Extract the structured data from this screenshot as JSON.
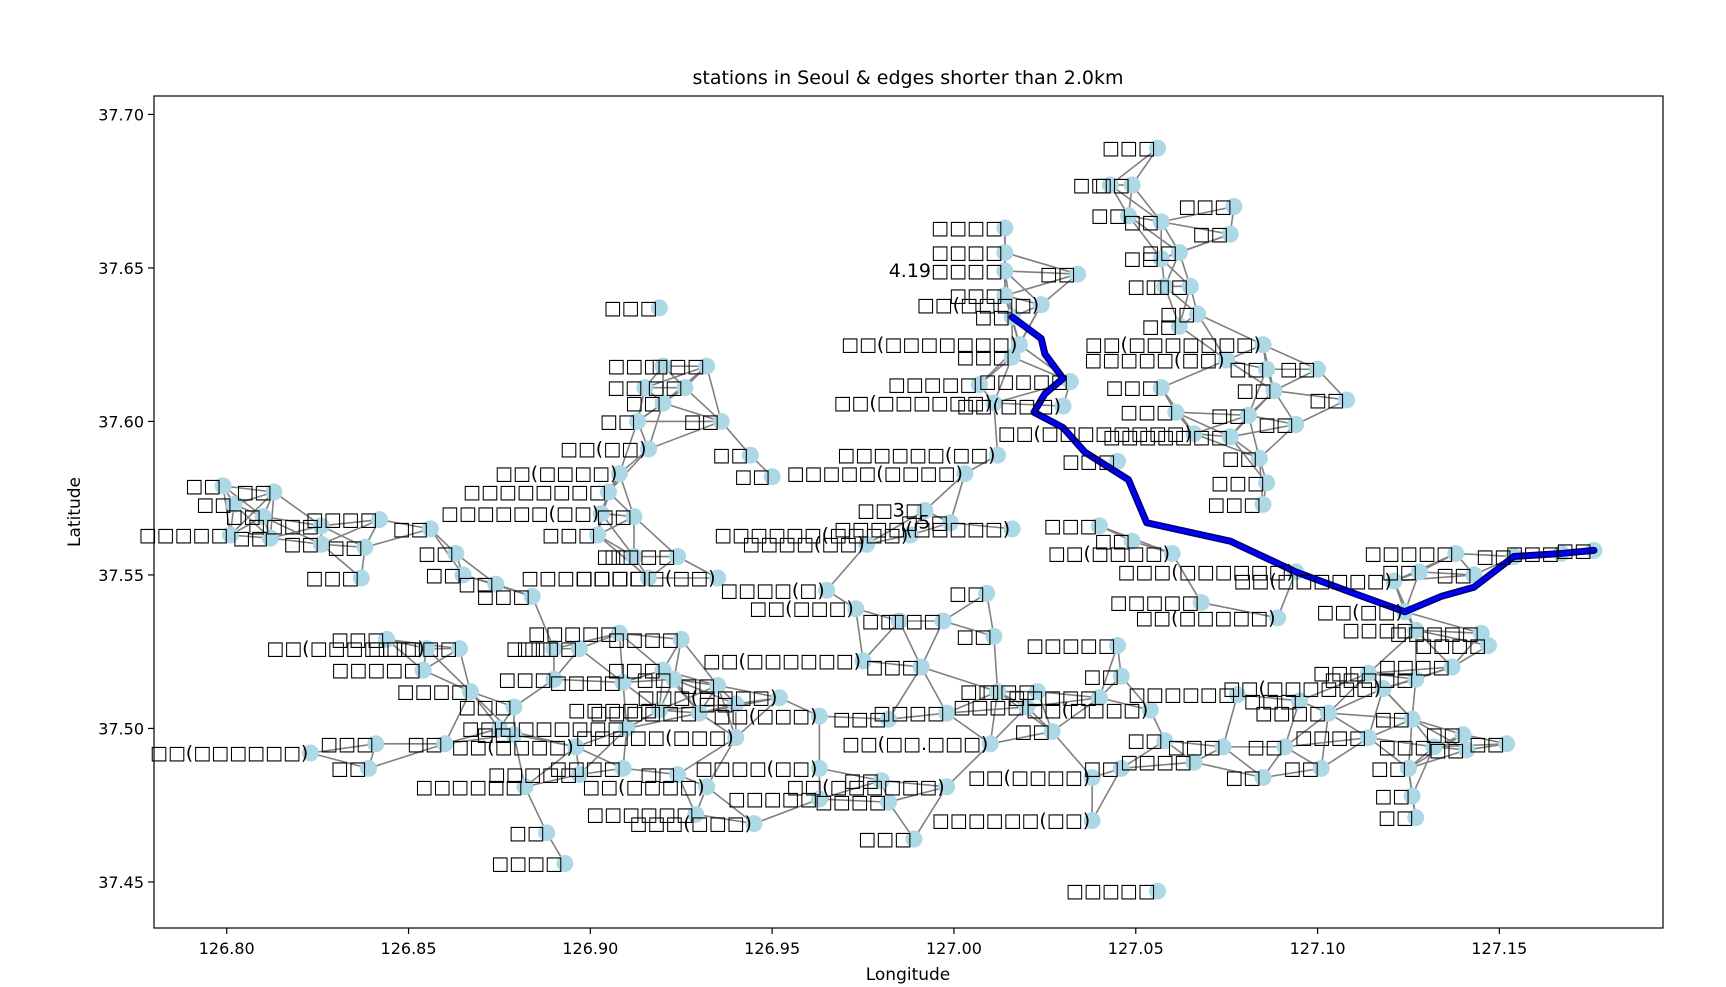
{
  "chart_data": {
    "type": "scatter",
    "title": "stations in Seoul & edges shorter than 2.0km",
    "xlabel": "Longitude",
    "ylabel": "Latitude",
    "xlim": [
      126.78,
      127.195
    ],
    "ylim": [
      37.435,
      37.706
    ],
    "xticks": [
      "126.80",
      "126.85",
      "126.90",
      "126.95",
      "127.00",
      "127.05",
      "127.10",
      "127.15"
    ],
    "yticks": [
      "37.45",
      "37.50",
      "37.55",
      "37.60",
      "37.65",
      "37.70"
    ],
    "grid": false,
    "legend": "none",
    "colors": {
      "node": "#add8e6",
      "edge": "#808080",
      "path": "#0000ff",
      "path_outline": "#000080"
    },
    "nodes": [
      {
        "label": "□□□",
        "x": 127.056,
        "y": 37.689
      },
      {
        "label": "□□",
        "x": 127.049,
        "y": 37.677
      },
      {
        "label": "□□",
        "x": 127.043,
        "y": 37.677
      },
      {
        "label": "□□□",
        "x": 127.077,
        "y": 37.67
      },
      {
        "label": "□□",
        "x": 127.048,
        "y": 37.667
      },
      {
        "label": "□□",
        "x": 127.057,
        "y": 37.665
      },
      {
        "label": "□□",
        "x": 127.076,
        "y": 37.661
      },
      {
        "label": "□□□□",
        "x": 127.014,
        "y": 37.663
      },
      {
        "label": "□□□□",
        "x": 127.014,
        "y": 37.655
      },
      {
        "label": "□□",
        "x": 127.057,
        "y": 37.653
      },
      {
        "label": "□□",
        "x": 127.062,
        "y": 37.655
      },
      {
        "label": "4.19□□□□",
        "x": 127.014,
        "y": 37.649
      },
      {
        "label": "□□",
        "x": 127.034,
        "y": 37.648
      },
      {
        "label": "□□",
        "x": 127.058,
        "y": 37.644
      },
      {
        "label": "□□",
        "x": 127.065,
        "y": 37.644
      },
      {
        "label": "□□□",
        "x": 127.014,
        "y": 37.641
      },
      {
        "label": "□□(□□□□)",
        "x": 127.024,
        "y": 37.638
      },
      {
        "label": "□□",
        "x": 127.016,
        "y": 37.634
      },
      {
        "label": "□□",
        "x": 127.067,
        "y": 37.635
      },
      {
        "label": "□□",
        "x": 127.062,
        "y": 37.631
      },
      {
        "label": "□□□",
        "x": 126.919,
        "y": 37.637
      },
      {
        "label": "□□(□□□□□□□)",
        "x": 127.018,
        "y": 37.625
      },
      {
        "label": "□□(□□□□□□□)",
        "x": 127.085,
        "y": 37.625
      },
      {
        "label": "□□□",
        "x": 127.016,
        "y": 37.621
      },
      {
        "label": "□□□□□(□□)",
        "x": 127.075,
        "y": 37.62
      },
      {
        "label": "□□",
        "x": 127.086,
        "y": 37.617
      },
      {
        "label": "□□□",
        "x": 126.932,
        "y": 37.618
      },
      {
        "label": "□□□",
        "x": 126.92,
        "y": 37.618
      },
      {
        "label": "□□",
        "x": 126.915,
        "y": 37.611
      },
      {
        "label": "□□",
        "x": 126.926,
        "y": 37.611
      },
      {
        "label": "□□",
        "x": 126.92,
        "y": 37.606
      },
      {
        "label": "□□",
        "x": 127.1,
        "y": 37.617
      },
      {
        "label": "□□",
        "x": 127.108,
        "y": 37.607
      },
      {
        "label": "□□□□□",
        "x": 127.007,
        "y": 37.612
      },
      {
        "label": "□□□□□",
        "x": 127.032,
        "y": 37.613
      },
      {
        "label": "□□",
        "x": 127.088,
        "y": 37.61
      },
      {
        "label": "□□□",
        "x": 127.057,
        "y": 37.611
      },
      {
        "label": "□□(□□□□□□)",
        "x": 127.011,
        "y": 37.606
      },
      {
        "label": "□□(□□□)",
        "x": 127.03,
        "y": 37.605
      },
      {
        "label": "□□□",
        "x": 127.061,
        "y": 37.603
      },
      {
        "label": "□□",
        "x": 127.081,
        "y": 37.602
      },
      {
        "label": "□□",
        "x": 127.094,
        "y": 37.599
      },
      {
        "label": "□□",
        "x": 126.936,
        "y": 37.6
      },
      {
        "label": "□□",
        "x": 126.913,
        "y": 37.6
      },
      {
        "label": "□□(□□)",
        "x": 126.916,
        "y": 37.591
      },
      {
        "label": "□□(□□□□□□□□)",
        "x": 127.066,
        "y": 37.596
      },
      {
        "label": "□□□□□□□",
        "x": 127.076,
        "y": 37.595
      },
      {
        "label": "□□",
        "x": 127.084,
        "y": 37.588
      },
      {
        "label": "□□",
        "x": 126.944,
        "y": 37.589
      },
      {
        "label": "□□(□□□□)",
        "x": 126.908,
        "y": 37.583
      },
      {
        "label": "□□□□□□(□□)",
        "x": 127.012,
        "y": 37.589
      },
      {
        "label": "□□□□□(□□□□)",
        "x": 127.003,
        "y": 37.583
      },
      {
        "label": "□□□",
        "x": 127.045,
        "y": 37.587
      },
      {
        "label": "□□",
        "x": 126.95,
        "y": 37.582
      },
      {
        "label": "□□□□□□□□",
        "x": 126.905,
        "y": 37.577
      },
      {
        "label": "□□□□□□(□□)",
        "x": 126.903,
        "y": 37.57
      },
      {
        "label": "□□□",
        "x": 127.086,
        "y": 37.58
      },
      {
        "label": "□□□",
        "x": 127.085,
        "y": 37.573
      },
      {
        "label": "□□",
        "x": 126.799,
        "y": 37.579
      },
      {
        "label": "□□",
        "x": 126.813,
        "y": 37.577
      },
      {
        "label": "□□",
        "x": 126.802,
        "y": 37.573
      },
      {
        "label": "□□",
        "x": 126.81,
        "y": 37.569
      },
      {
        "label": "□□□□",
        "x": 126.842,
        "y": 37.568
      },
      {
        "label": "□□□□",
        "x": 126.826,
        "y": 37.566
      },
      {
        "label": "□□□□□",
        "x": 126.801,
        "y": 37.563
      },
      {
        "label": "□□",
        "x": 126.812,
        "y": 37.562
      },
      {
        "label": "□□",
        "x": 126.826,
        "y": 37.56
      },
      {
        "label": "□□",
        "x": 126.838,
        "y": 37.559
      },
      {
        "label": "□□",
        "x": 126.856,
        "y": 37.565
      },
      {
        "label": "□□",
        "x": 126.863,
        "y": 37.557
      },
      {
        "label": "□□",
        "x": 126.865,
        "y": 37.55
      },
      {
        "label": "□□□",
        "x": 126.837,
        "y": 37.549
      },
      {
        "label": "□□",
        "x": 126.874,
        "y": 37.547
      },
      {
        "label": "□□□",
        "x": 126.884,
        "y": 37.543
      },
      {
        "label": "□□",
        "x": 126.912,
        "y": 37.569
      },
      {
        "label": "□□□",
        "x": 126.902,
        "y": 37.563
      },
      {
        "label": "□□",
        "x": 126.912,
        "y": 37.556
      },
      {
        "label": "□□□□",
        "x": 126.924,
        "y": 37.556
      },
      {
        "label": "□□□□□(□□)",
        "x": 126.935,
        "y": 37.549
      },
      {
        "label": "□□□□□□□",
        "x": 126.916,
        "y": 37.549
      },
      {
        "label": "□□□□(□□)",
        "x": 126.976,
        "y": 37.56
      },
      {
        "label": "□□□□□□(□□□□)",
        "x": 126.988,
        "y": 37.563
      },
      {
        "label": "□□3□",
        "x": 126.992,
        "y": 37.571
      },
      {
        "label": "□5□",
        "x": 126.999,
        "y": 37.567
      },
      {
        "label": "□□□□(□□□□□)",
        "x": 127.016,
        "y": 37.565
      },
      {
        "label": "□□□",
        "x": 127.04,
        "y": 37.566
      },
      {
        "label": "□□",
        "x": 127.049,
        "y": 37.561
      },
      {
        "label": "□□(□□□□)",
        "x": 127.06,
        "y": 37.557
      },
      {
        "label": "□□□(□□□□□□)",
        "x": 127.094,
        "y": 37.551
      },
      {
        "label": "□□(□□□□□□)",
        "x": 127.121,
        "y": 37.548
      },
      {
        "label": "□□(□□)",
        "x": 127.124,
        "y": 37.538
      },
      {
        "label": "□□□□□",
        "x": 127.138,
        "y": 37.557
      },
      {
        "label": "□□",
        "x": 127.128,
        "y": 37.551
      },
      {
        "label": "□□",
        "x": 127.143,
        "y": 37.55
      },
      {
        "label": "□□",
        "x": 127.154,
        "y": 37.556
      },
      {
        "label": "□□□",
        "x": 127.167,
        "y": 37.557
      },
      {
        "label": "□□",
        "x": 127.176,
        "y": 37.558
      },
      {
        "label": "□□□□(□)",
        "x": 126.965,
        "y": 37.545
      },
      {
        "label": "□□(□□□)",
        "x": 126.973,
        "y": 37.539
      },
      {
        "label": "□□□□□",
        "x": 127.068,
        "y": 37.541
      },
      {
        "label": "□□(□□□□□)",
        "x": 127.089,
        "y": 37.536
      },
      {
        "label": "□□□□",
        "x": 127.127,
        "y": 37.532
      },
      {
        "label": "□□□□□",
        "x": 127.145,
        "y": 37.531
      },
      {
        "label": "□□□□",
        "x": 127.147,
        "y": 37.527
      },
      {
        "label": "□□",
        "x": 127.009,
        "y": 37.544
      },
      {
        "label": "□□□",
        "x": 126.997,
        "y": 37.535
      },
      {
        "label": "□□",
        "x": 126.985,
        "y": 37.535
      },
      {
        "label": "□□",
        "x": 127.011,
        "y": 37.53
      },
      {
        "label": "□□□□□",
        "x": 127.045,
        "y": 37.527
      },
      {
        "label": "□□□□",
        "x": 127.137,
        "y": 37.52
      },
      {
        "label": "□□(□□□□□□)",
        "x": 126.975,
        "y": 37.522
      },
      {
        "label": "□□□",
        "x": 126.991,
        "y": 37.52
      },
      {
        "label": "□□□",
        "x": 126.844,
        "y": 37.529
      },
      {
        "label": "□□(□□□□□□)",
        "x": 126.855,
        "y": 37.526
      },
      {
        "label": "□□□□□",
        "x": 126.864,
        "y": 37.526
      },
      {
        "label": "□□□□□",
        "x": 126.854,
        "y": 37.519
      },
      {
        "label": "□□□□",
        "x": 126.867,
        "y": 37.512
      },
      {
        "label": "□□□□",
        "x": 126.897,
        "y": 37.526
      },
      {
        "label": "□□",
        "x": 126.89,
        "y": 37.526
      },
      {
        "label": "□□□",
        "x": 126.89,
        "y": 37.516
      },
      {
        "label": "□□□□□",
        "x": 126.908,
        "y": 37.531
      },
      {
        "label": "□□□□",
        "x": 126.925,
        "y": 37.529
      },
      {
        "label": "□□□",
        "x": 126.92,
        "y": 37.519
      },
      {
        "label": "□□□□",
        "x": 126.909,
        "y": 37.515
      },
      {
        "label": "□□",
        "x": 126.923,
        "y": 37.516
      },
      {
        "label": "□□",
        "x": 126.935,
        "y": 37.514
      },
      {
        "label": "□□□(□□□□)",
        "x": 126.952,
        "y": 37.51
      },
      {
        "label": "□□(□□□)",
        "x": 126.963,
        "y": 37.504
      },
      {
        "label": "□□",
        "x": 126.94,
        "y": 37.508
      },
      {
        "label": "□□□□□",
        "x": 126.919,
        "y": 37.506
      },
      {
        "label": "□□□□□□",
        "x": 126.93,
        "y": 37.505
      },
      {
        "label": "□□□",
        "x": 126.879,
        "y": 37.507
      },
      {
        "label": "□□",
        "x": 126.879,
        "y": 37.498
      },
      {
        "label": "□□",
        "x": 126.86,
        "y": 37.495
      },
      {
        "label": "□□",
        "x": 126.875,
        "y": 37.5
      },
      {
        "label": "□□□",
        "x": 126.841,
        "y": 37.495
      },
      {
        "label": "□□",
        "x": 126.839,
        "y": 37.487
      },
      {
        "label": "□□(□□□□□□)",
        "x": 126.823,
        "y": 37.492
      },
      {
        "label": "□□(□□□□)",
        "x": 126.896,
        "y": 37.494
      },
      {
        "label": "□□□□□□□",
        "x": 126.91,
        "y": 37.5
      },
      {
        "label": "□□□□□(□□□)",
        "x": 126.94,
        "y": 37.497
      },
      {
        "label": "□□□□□",
        "x": 126.897,
        "y": 37.485
      },
      {
        "label": "□□□□",
        "x": 126.909,
        "y": 37.487
      },
      {
        "label": "□□□□□□",
        "x": 126.882,
        "y": 37.481
      },
      {
        "label": "□□(□□□□)",
        "x": 126.932,
        "y": 37.481
      },
      {
        "label": "□□",
        "x": 126.924,
        "y": 37.485
      },
      {
        "label": "□□□□□□",
        "x": 126.929,
        "y": 37.472
      },
      {
        "label": "□□□(□□□)",
        "x": 126.945,
        "y": 37.469
      },
      {
        "label": "□□",
        "x": 126.888,
        "y": 37.466
      },
      {
        "label": "□□□□",
        "x": 126.893,
        "y": 37.456
      },
      {
        "label": "□□□□(□□)",
        "x": 126.963,
        "y": 37.487
      },
      {
        "label": "□□□□□",
        "x": 126.963,
        "y": 37.477
      },
      {
        "label": "□□",
        "x": 126.98,
        "y": 37.483
      },
      {
        "label": "□□□□",
        "x": 126.982,
        "y": 37.476
      },
      {
        "label": "□□□",
        "x": 126.989,
        "y": 37.464
      },
      {
        "label": "□□(□□□□□□)",
        "x": 126.998,
        "y": 37.481
      },
      {
        "label": "□□(□□.□□□)",
        "x": 127.01,
        "y": 37.495
      },
      {
        "label": "□□□",
        "x": 126.982,
        "y": 37.503
      },
      {
        "label": "□□□□",
        "x": 126.998,
        "y": 37.505
      },
      {
        "label": "□□□□",
        "x": 127.02,
        "y": 37.507
      },
      {
        "label": "□□",
        "x": 127.012,
        "y": 37.512
      },
      {
        "label": "□□□",
        "x": 127.023,
        "y": 37.512
      },
      {
        "label": "□□",
        "x": 127.027,
        "y": 37.499
      },
      {
        "label": "□□(□□□□)",
        "x": 127.038,
        "y": 37.484
      },
      {
        "label": "□□□□□□(□□)",
        "x": 127.038,
        "y": 37.47
      },
      {
        "label": "□□□□□",
        "x": 127.056,
        "y": 37.447
      },
      {
        "label": "□□□□□",
        "x": 127.04,
        "y": 37.51
      },
      {
        "label": "□□(□□□□)",
        "x": 127.054,
        "y": 37.506
      },
      {
        "label": "□□",
        "x": 127.046,
        "y": 37.517
      },
      {
        "label": "□□□□□□",
        "x": 127.078,
        "y": 37.511
      },
      {
        "label": "□□",
        "x": 127.046,
        "y": 37.487
      },
      {
        "label": "□□",
        "x": 127.058,
        "y": 37.496
      },
      {
        "label": "□□□□",
        "x": 127.066,
        "y": 37.489
      },
      {
        "label": "□□□",
        "x": 127.074,
        "y": 37.494
      },
      {
        "label": "□□",
        "x": 127.085,
        "y": 37.484
      },
      {
        "label": "□□",
        "x": 127.091,
        "y": 37.494
      },
      {
        "label": "□□□",
        "x": 127.095,
        "y": 37.509
      },
      {
        "label": "□□□□",
        "x": 127.103,
        "y": 37.505
      },
      {
        "label": "□□(□□□□□□)",
        "x": 127.118,
        "y": 37.513
      },
      {
        "label": "□□□",
        "x": 127.114,
        "y": 37.518
      },
      {
        "label": "□□□□□",
        "x": 127.127,
        "y": 37.516
      },
      {
        "label": "□□□□",
        "x": 127.114,
        "y": 37.497
      },
      {
        "label": "□□",
        "x": 127.101,
        "y": 37.487
      },
      {
        "label": "□□",
        "x": 127.126,
        "y": 37.503
      },
      {
        "label": "□□□",
        "x": 127.132,
        "y": 37.494
      },
      {
        "label": "□□",
        "x": 127.14,
        "y": 37.498
      },
      {
        "label": "□□",
        "x": 127.141,
        "y": 37.493
      },
      {
        "label": "□□",
        "x": 127.152,
        "y": 37.495
      },
      {
        "label": "□□",
        "x": 127.125,
        "y": 37.487
      },
      {
        "label": "□□",
        "x": 127.126,
        "y": 37.478
      },
      {
        "label": "□□",
        "x": 127.127,
        "y": 37.471
      }
    ],
    "path": [
      [
        127.016,
        37.634
      ],
      [
        127.024,
        37.627
      ],
      [
        127.025,
        37.622
      ],
      [
        127.03,
        37.614
      ],
      [
        127.025,
        37.609
      ],
      [
        127.022,
        37.603
      ],
      [
        127.03,
        37.598
      ],
      [
        127.036,
        37.59
      ],
      [
        127.048,
        37.581
      ],
      [
        127.053,
        37.567
      ],
      [
        127.076,
        37.561
      ],
      [
        127.094,
        37.551
      ],
      [
        127.11,
        37.544
      ],
      [
        127.124,
        37.538
      ],
      [
        127.134,
        37.543
      ],
      [
        127.143,
        37.546
      ],
      [
        127.154,
        37.556
      ],
      [
        127.167,
        37.557
      ],
      [
        127.176,
        37.558
      ]
    ]
  }
}
